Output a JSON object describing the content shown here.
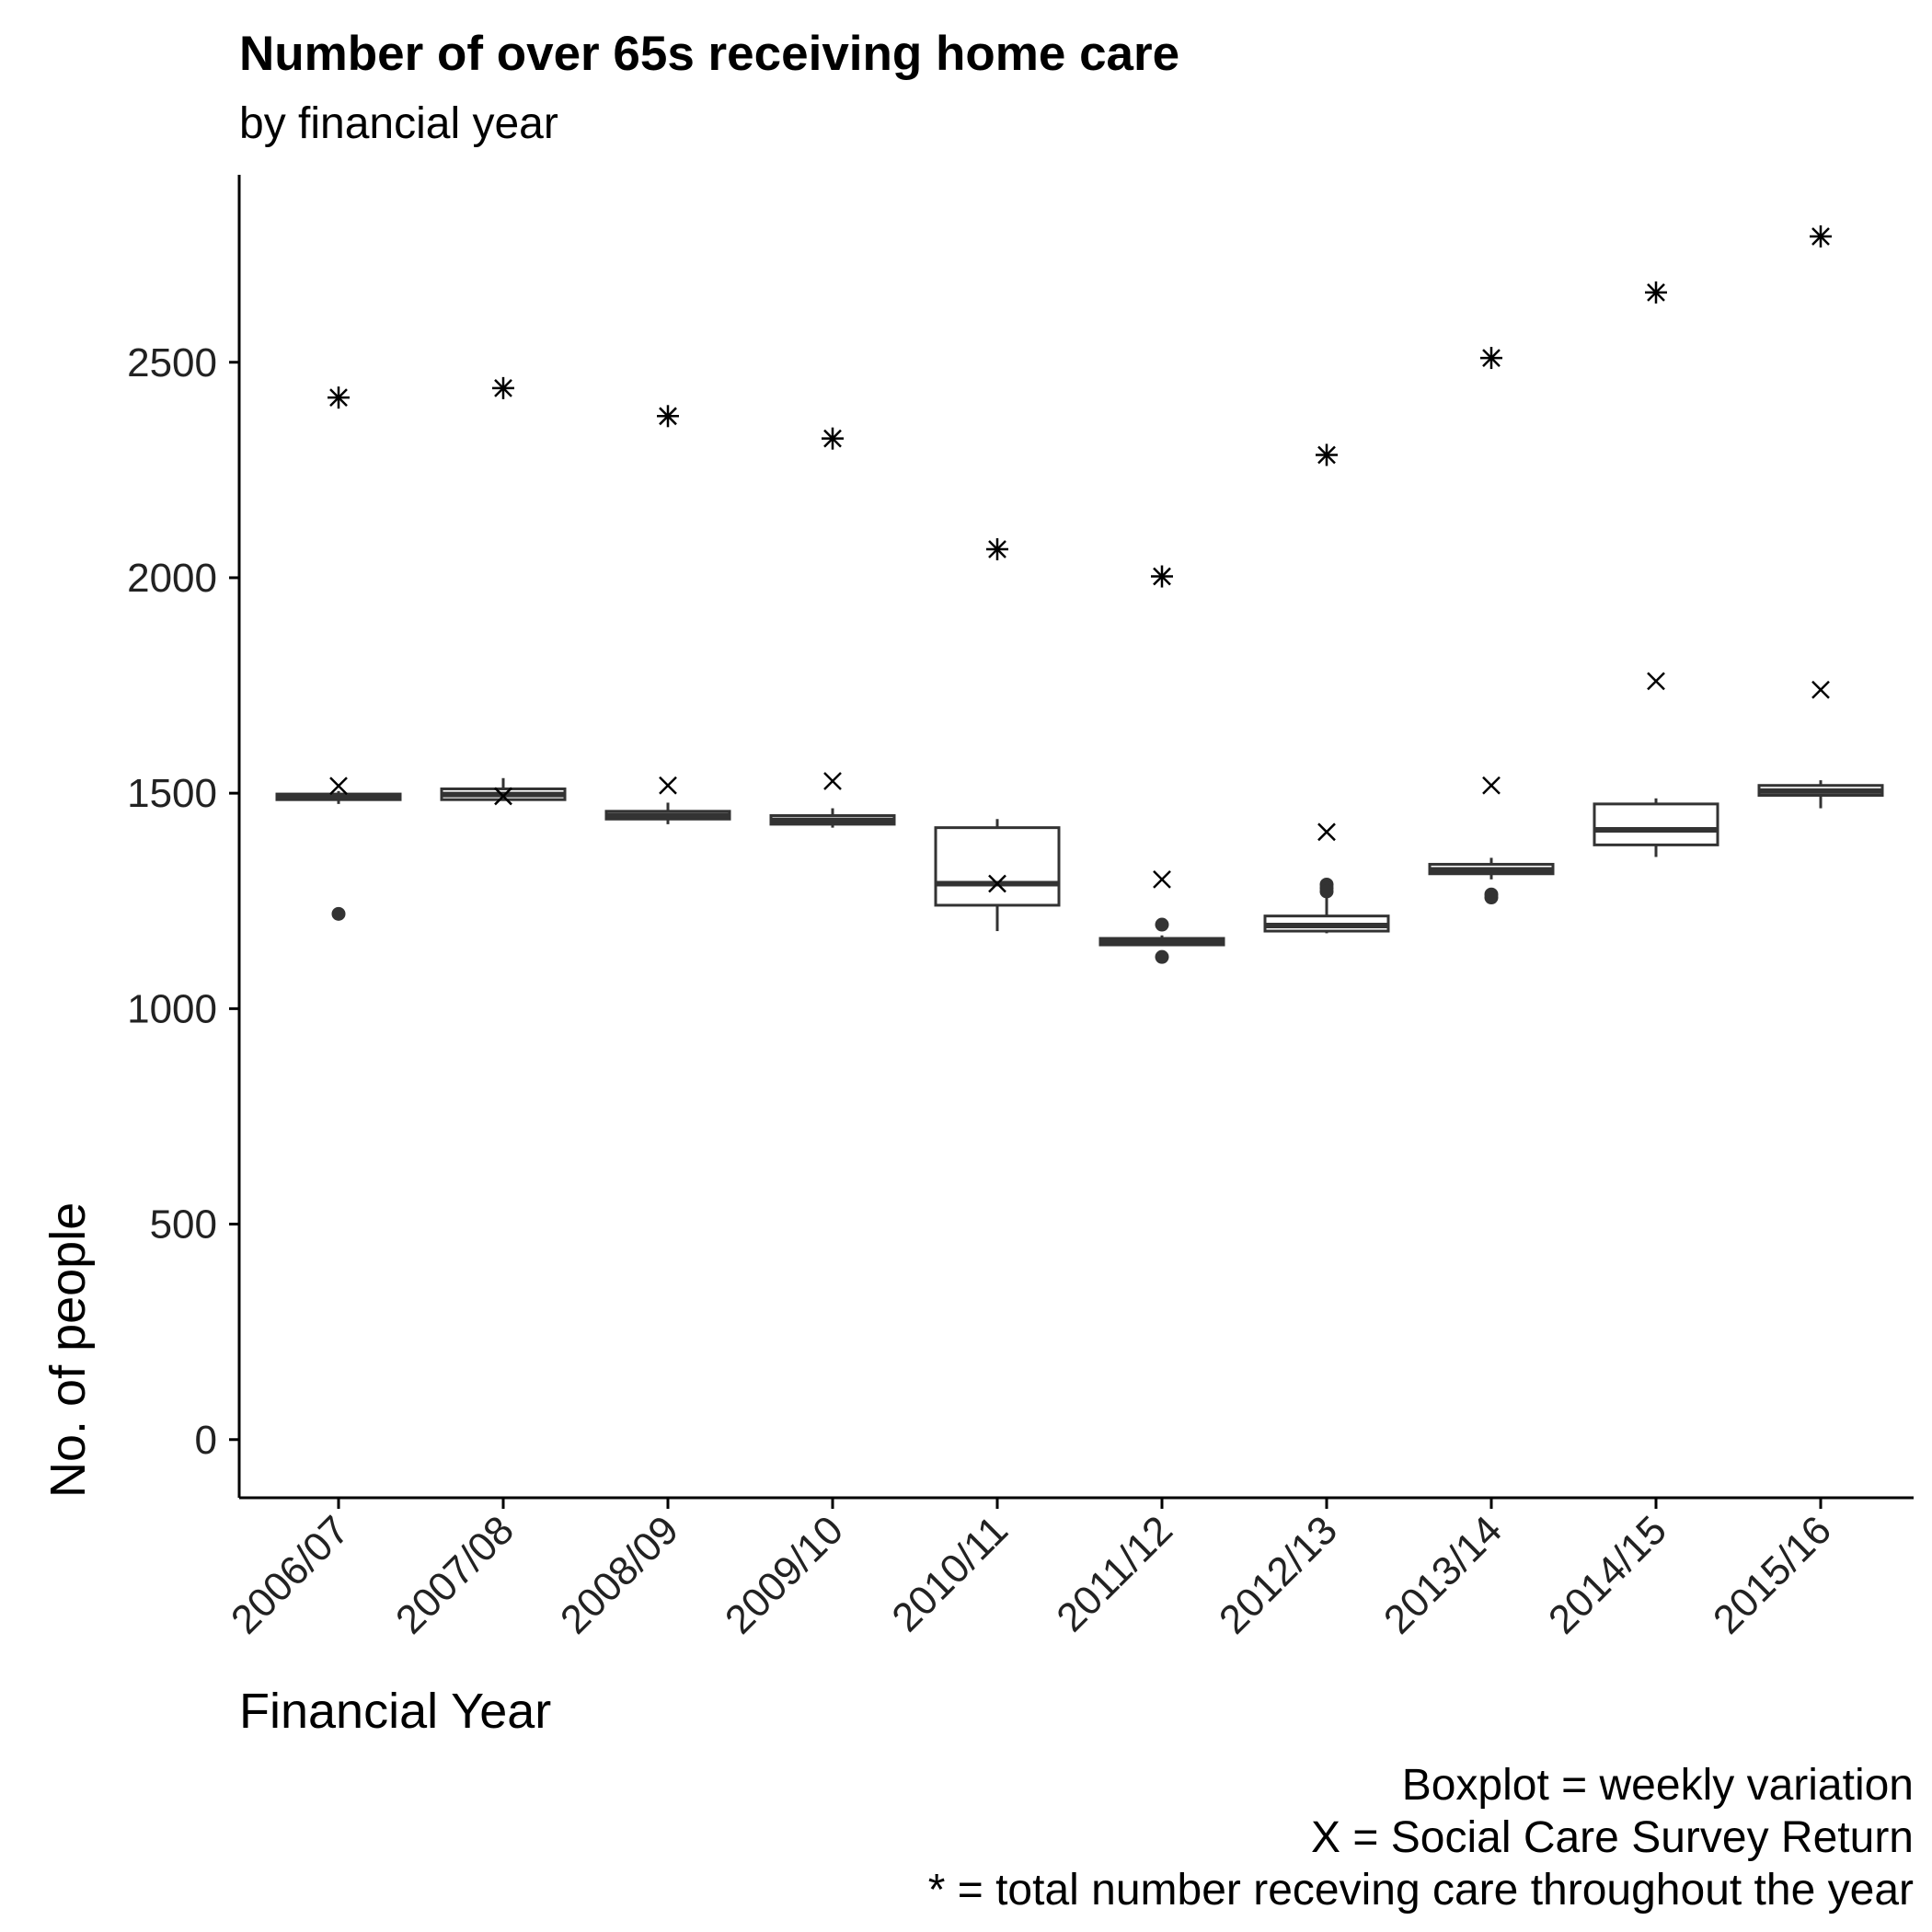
{
  "chart_data": {
    "type": "boxplot",
    "title": "Number of over 65s receiving home care",
    "subtitle": "by financial year",
    "xlabel": "Financial Year",
    "ylabel": "No. of people",
    "ylim": [
      -135,
      2935
    ],
    "yticks": [
      0,
      500,
      1000,
      1500,
      2000,
      2500
    ],
    "grid": false,
    "categories": [
      "2006/07",
      "2007/08",
      "2008/09",
      "2009/10",
      "2010/11",
      "2011/12",
      "2012/13",
      "2013/14",
      "2014/15",
      "2015/16"
    ],
    "boxes": [
      {
        "whisker_low": 1475,
        "q1": 1485,
        "median": 1492,
        "q3": 1498,
        "whisker_high": 1505,
        "outliers": [
          1220
        ]
      },
      {
        "whisker_low": 1482,
        "q1": 1485,
        "median": 1497,
        "q3": 1510,
        "whisker_high": 1535,
        "outliers": []
      },
      {
        "whisker_low": 1428,
        "q1": 1440,
        "median": 1448,
        "q3": 1458,
        "whisker_high": 1478,
        "outliers": []
      },
      {
        "whisker_low": 1420,
        "q1": 1428,
        "median": 1437,
        "q3": 1448,
        "whisker_high": 1465,
        "outliers": []
      },
      {
        "whisker_low": 1180,
        "q1": 1240,
        "median": 1290,
        "q3": 1420,
        "whisker_high": 1440,
        "outliers": []
      },
      {
        "whisker_low": 1145,
        "q1": 1148,
        "median": 1155,
        "q3": 1163,
        "whisker_high": 1170,
        "outliers": [
          1195,
          1120
        ]
      },
      {
        "whisker_low": 1175,
        "q1": 1180,
        "median": 1193,
        "q3": 1215,
        "whisker_high": 1268,
        "outliers": [
          1288,
          1280,
          1272
        ]
      },
      {
        "whisker_low": 1300,
        "q1": 1313,
        "median": 1322,
        "q3": 1335,
        "whisker_high": 1350,
        "outliers": [
          1265,
          1258
        ]
      },
      {
        "whisker_low": 1352,
        "q1": 1380,
        "median": 1415,
        "q3": 1475,
        "whisker_high": 1488,
        "outliers": []
      },
      {
        "whisker_low": 1465,
        "q1": 1495,
        "median": 1505,
        "q3": 1518,
        "whisker_high": 1530,
        "outliers": []
      }
    ],
    "series": [
      {
        "name": "Social Care Survey Return",
        "marker": "x",
        "values": [
          1517,
          1493,
          1518,
          1528,
          1290,
          1300,
          1410,
          1518,
          1760,
          1740
        ]
      },
      {
        "name": "total number receving care throughout the year",
        "marker": "asterisk",
        "values": [
          2418,
          2440,
          2375,
          2323,
          2066,
          2003,
          2285,
          2510,
          2662,
          2792
        ]
      }
    ],
    "caption": [
      "Boxplot = weekly variation",
      "X = Social Care Survey Return",
      "* = total number receving care throughout the year"
    ],
    "colors": {
      "box_fill": "#ffffff",
      "box_line": "#333333",
      "marker": "#000000",
      "axis": "#000000"
    }
  }
}
